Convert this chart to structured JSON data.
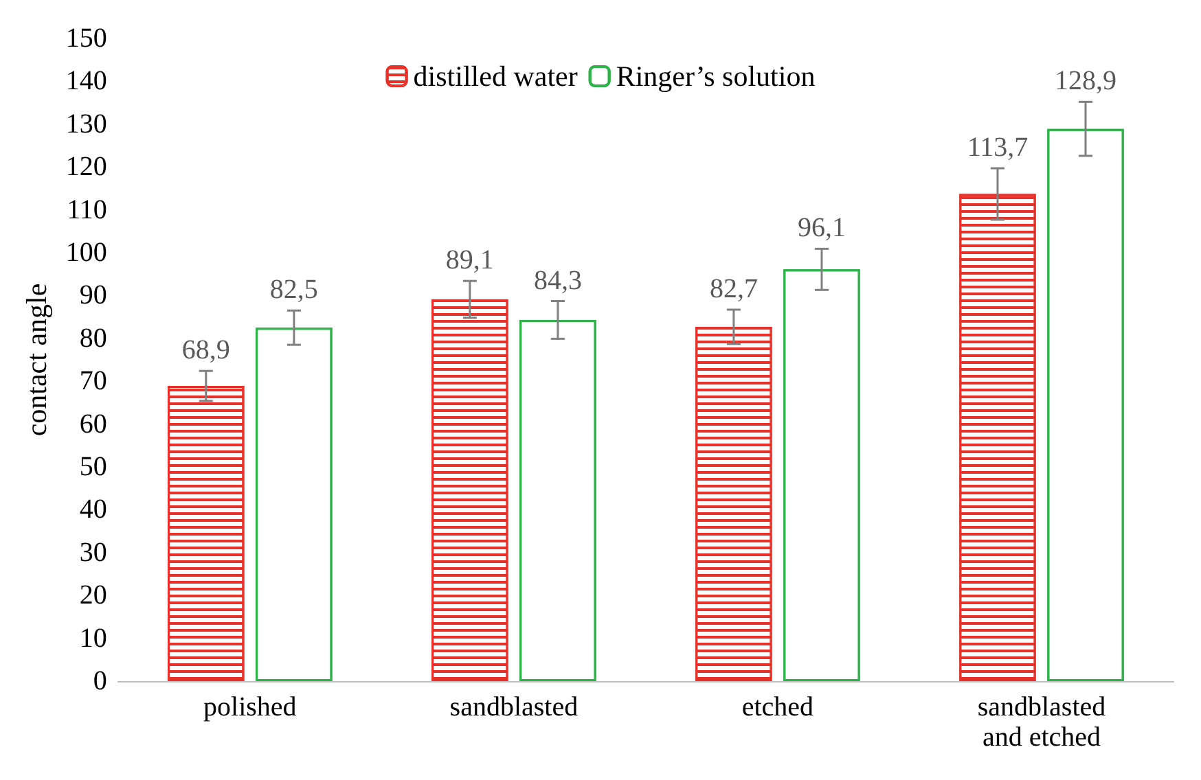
{
  "chart_data": {
    "type": "bar",
    "ylabel": "contact angle",
    "categories": [
      "polished",
      "sandblasted",
      "etched",
      "sandblasted\nand etched"
    ],
    "series": [
      {
        "name": "distilled water",
        "color": "#e8312a",
        "values": [
          68.9,
          89.1,
          82.7,
          113.7
        ],
        "errors": [
          3.5,
          4.3,
          4,
          6
        ],
        "value_labels": [
          "68,9",
          "89,1",
          "82,7",
          "113,7"
        ]
      },
      {
        "name": "Ringer’s solution",
        "color": "#2eb34a",
        "values": [
          82.5,
          84.3,
          96.1,
          128.9
        ],
        "errors": [
          4,
          4.4,
          4.8,
          6.3
        ],
        "value_labels": [
          "82,5",
          "84,3",
          "96,1",
          "128,9"
        ]
      }
    ],
    "ylim": [
      0,
      150
    ],
    "yticks": [
      0,
      10,
      20,
      30,
      40,
      50,
      60,
      70,
      80,
      90,
      100,
      110,
      120,
      130,
      140,
      150
    ],
    "grid": false,
    "legend": "top"
  }
}
